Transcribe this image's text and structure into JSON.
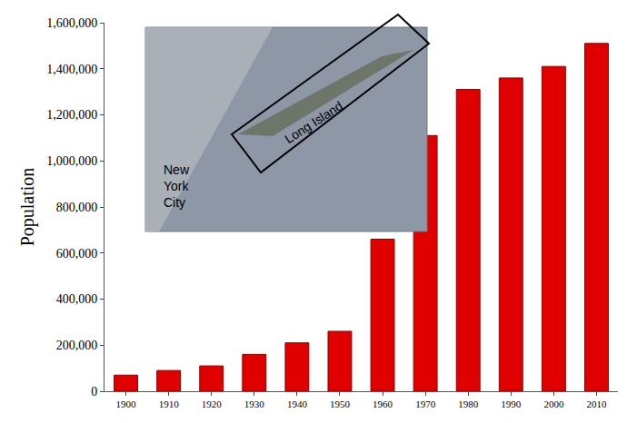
{
  "chart_data": {
    "type": "bar",
    "ylabel": "Population",
    "categories": [
      "1900",
      "1910",
      "1920",
      "1930",
      "1940",
      "1950",
      "1960",
      "1970",
      "1980",
      "1990",
      "2000",
      "2010"
    ],
    "values": [
      70000,
      90000,
      110000,
      160000,
      210000,
      260000,
      660000,
      1110000,
      1310000,
      1360000,
      1410000,
      1510000
    ],
    "color": "#e00000",
    "ylim": [
      0,
      1600000
    ],
    "yticks": [
      0,
      {
        "value": 200000,
        "label": "200,000"
      },
      {
        "value": 400000,
        "label": "400,000"
      },
      {
        "value": 600000,
        "label": "600,000"
      },
      {
        "value": 800000,
        "label": "800,000"
      },
      {
        "value": 1000000,
        "label": "1,000,000"
      },
      {
        "value": 1200000,
        "label": "1,200,000"
      },
      {
        "value": 1400000,
        "label": "1,400,000"
      },
      {
        "value": 1600000,
        "label": "1,600,000"
      }
    ],
    "grid": false,
    "annotations": [
      {
        "text": "New York City"
      },
      {
        "text": "Long Island"
      }
    ]
  }
}
